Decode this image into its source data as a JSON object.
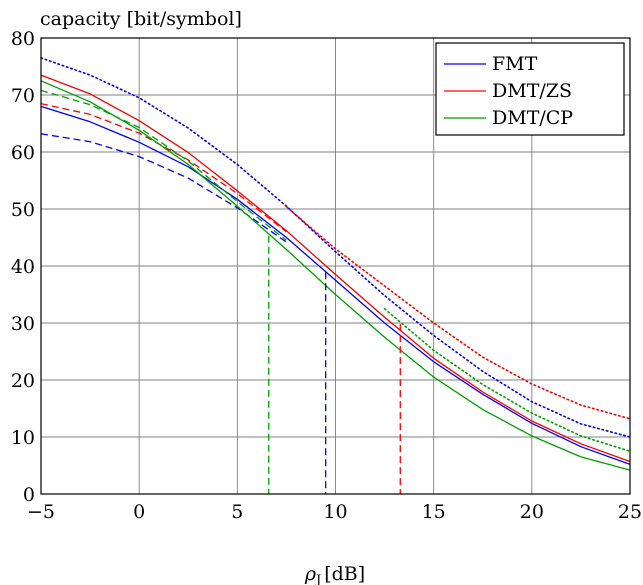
{
  "chart_data": {
    "type": "line",
    "ylabel": "capacity  [bit/symbol]",
    "xlabel_symbol": "ρ",
    "xlabel_subscript": "J",
    "xlabel_unit": "[dB]",
    "xlim": [
      -5,
      25
    ],
    "ylim": [
      0,
      80
    ],
    "x_ticks": [
      -5,
      0,
      5,
      10,
      15,
      20,
      25
    ],
    "y_ticks": [
      0,
      10,
      20,
      30,
      40,
      50,
      60,
      70,
      80
    ],
    "x_tick_labels": [
      "−5",
      "0",
      "5",
      "10",
      "15",
      "20",
      "25"
    ],
    "y_tick_labels": [
      "0",
      "10",
      "20",
      "30",
      "40",
      "50",
      "60",
      "70",
      "80"
    ],
    "grid": true,
    "legend_position": "top-right",
    "legend": [
      {
        "label": "FMT",
        "color": "#0000ff"
      },
      {
        "label": "DMT/ZS",
        "color": "#ff0000"
      },
      {
        "label": "DMT/CP",
        "color": "#00a000"
      }
    ],
    "x": [
      -5,
      -2.5,
      0,
      2.5,
      5,
      7.5,
      10,
      12.5,
      15,
      17.5,
      20,
      22.5,
      25
    ],
    "series": [
      {
        "color": "#0000ff",
        "style": "solid",
        "values": [
          68,
          65.3,
          61.7,
          57.4,
          51.7,
          45,
          37.5,
          30,
          23.2,
          17.5,
          12.4,
          8.3,
          5.2
        ]
      },
      {
        "color": "#0000ff",
        "style": "dashed",
        "values": [
          63.2,
          61.8,
          59.2,
          55.4,
          50.2,
          44.2,
          null,
          null,
          null,
          null,
          null,
          null,
          null
        ]
      },
      {
        "color": "#0000ff",
        "style": "dotted",
        "values": [
          76.5,
          73.5,
          69.5,
          64.2,
          57.8,
          50.5,
          42.5,
          34.8,
          27.8,
          21.5,
          16.2,
          12.3,
          10
        ]
      },
      {
        "color": "#ff0000",
        "style": "solid",
        "values": [
          73.5,
          70.2,
          65.5,
          59.9,
          53.2,
          46.2,
          38.5,
          31,
          23.8,
          17.9,
          12.8,
          8.8,
          5.7
        ]
      },
      {
        "color": "#ff0000",
        "style": "dashed",
        "values": [
          68.5,
          66.6,
          63.3,
          58.6,
          52.7,
          46,
          null,
          null,
          null,
          null,
          null,
          null,
          null
        ]
      },
      {
        "color": "#ff0000",
        "style": "dotted",
        "values": [
          null,
          null,
          null,
          null,
          null,
          50.4,
          43,
          36.5,
          30,
          24,
          19.3,
          15.6,
          13.2
        ]
      },
      {
        "color": "#00a000",
        "style": "solid",
        "values": [
          72.5,
          68.8,
          63.8,
          57.8,
          50.5,
          42.9,
          35,
          27.5,
          20.5,
          14.8,
          10.2,
          6.5,
          4.2
        ]
      },
      {
        "color": "#00a000",
        "style": "dashed",
        "values": [
          70.8,
          68.3,
          64.3,
          58.4,
          51.3,
          44.5,
          null,
          null,
          null,
          null,
          null,
          null,
          null
        ]
      },
      {
        "color": "#00a000",
        "style": "dotted",
        "values": [
          null,
          null,
          null,
          null,
          null,
          null,
          null,
          32.5,
          25.2,
          19.2,
          14.2,
          10.2,
          7.5
        ]
      }
    ],
    "vertical_markers": [
      {
        "x": 6.6,
        "y": 45.3,
        "color": "#00a000",
        "style": "dashed"
      },
      {
        "x": 9.5,
        "y": 38.9,
        "color": "#0000ff",
        "style": "dashed"
      },
      {
        "x": 13.3,
        "y": 29.8,
        "color": "#ff0000",
        "style": "dashed"
      }
    ]
  }
}
